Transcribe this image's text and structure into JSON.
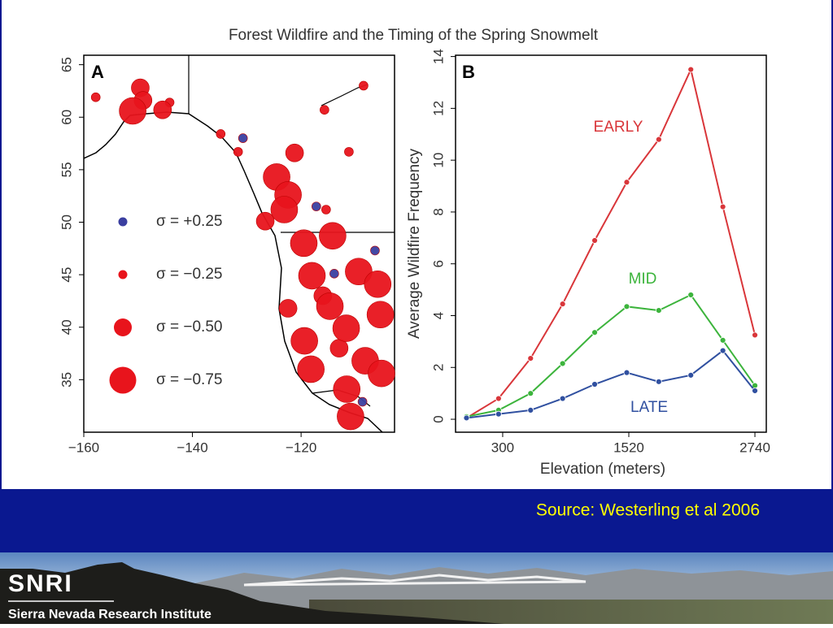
{
  "title": "Forest Wildfire and the Timing of the Spring Snowmelt",
  "chart_data": [
    {
      "type": "scatter",
      "panel": "A",
      "xlim": [
        -160,
        -102.8
      ],
      "ylim": [
        30,
        65.9
      ],
      "xticks": [
        {
          "value": -160,
          "label": "−160"
        },
        {
          "value": -140,
          "label": "−140"
        },
        {
          "value": -120,
          "label": "−120"
        }
      ],
      "yticks": [
        35,
        40,
        45,
        50,
        55,
        60,
        65
      ],
      "series": [
        {
          "name": "σ = +0.25",
          "sigma": 0.25,
          "color": "#3a3fa0",
          "x": [
            -130.7,
            -117.2,
            -113.9,
            -106.4,
            -108.7
          ],
          "y": [
            58.0,
            51.5,
            45.1,
            47.3,
            32.9
          ]
        },
        {
          "name": "σ = −0.25",
          "sigma": -0.25,
          "color": "#e8141c",
          "x": [
            -157.8,
            -144.2,
            -108.5,
            -115.7,
            -134.8,
            -131.6,
            -111.2,
            -115.4
          ],
          "y": [
            61.9,
            61.4,
            63.0,
            60.7,
            58.4,
            56.7,
            56.7,
            51.2
          ]
        },
        {
          "name": "σ = −0.50",
          "sigma": -0.5,
          "color": "#e8141c",
          "x": [
            -149.6,
            -149.1,
            -145.5,
            -121.2,
            -126.6,
            -122.4,
            -116.0,
            -113.0
          ],
          "y": [
            62.8,
            61.6,
            60.7,
            56.6,
            50.1,
            41.8,
            43.0,
            38.0
          ]
        },
        {
          "name": "σ = −0.75",
          "sigma": -0.75,
          "color": "#e8141c",
          "x": [
            -151.0,
            -124.5,
            -122.4,
            -123.1,
            -119.5,
            -114.2,
            -118.0,
            -114.7,
            -109.4,
            -105.9,
            -105.4,
            -111.7,
            -119.4,
            -108.2,
            -105.2,
            -118.2,
            -111.6,
            -110.9
          ],
          "y": [
            60.6,
            54.3,
            52.6,
            51.2,
            48.0,
            48.7,
            44.9,
            42.0,
            45.3,
            44.1,
            41.2,
            39.9,
            38.7,
            36.8,
            35.6,
            36.0,
            34.1,
            31.5
          ]
        }
      ]
    },
    {
      "type": "line",
      "panel": "B",
      "xlabel": "Elevation (meters)",
      "ylabel": "Average Wildfire Frequency",
      "xlim": [
        -156,
        2850
      ],
      "ylim": [
        -0.5,
        14.05
      ],
      "xticks": [
        300,
        1520,
        2740
      ],
      "yticks": [
        0,
        2,
        4,
        6,
        8,
        10,
        12,
        14
      ],
      "x": [
        -50,
        260,
        570,
        880,
        1190,
        1500,
        1810,
        2120,
        2430,
        2740
      ],
      "series": [
        {
          "name": "EARLY",
          "color": "#d9363a",
          "values": [
            0.05,
            0.8,
            2.35,
            4.45,
            6.9,
            9.15,
            10.8,
            13.5,
            8.2,
            3.25
          ]
        },
        {
          "name": "MID",
          "color": "#3cb43c",
          "values": [
            0.1,
            0.35,
            1.0,
            2.15,
            3.35,
            4.35,
            4.2,
            4.8,
            3.05,
            1.3
          ]
        },
        {
          "name": "LATE",
          "color": "#3050a0",
          "values": [
            0.05,
            0.2,
            0.35,
            0.8,
            1.35,
            1.8,
            1.45,
            1.7,
            2.65,
            1.1
          ]
        }
      ]
    }
  ],
  "footer": {
    "source": "Source: Westerling et al 2006",
    "logo": "SNRI",
    "institute": "Sierra Nevada Research Institute"
  }
}
